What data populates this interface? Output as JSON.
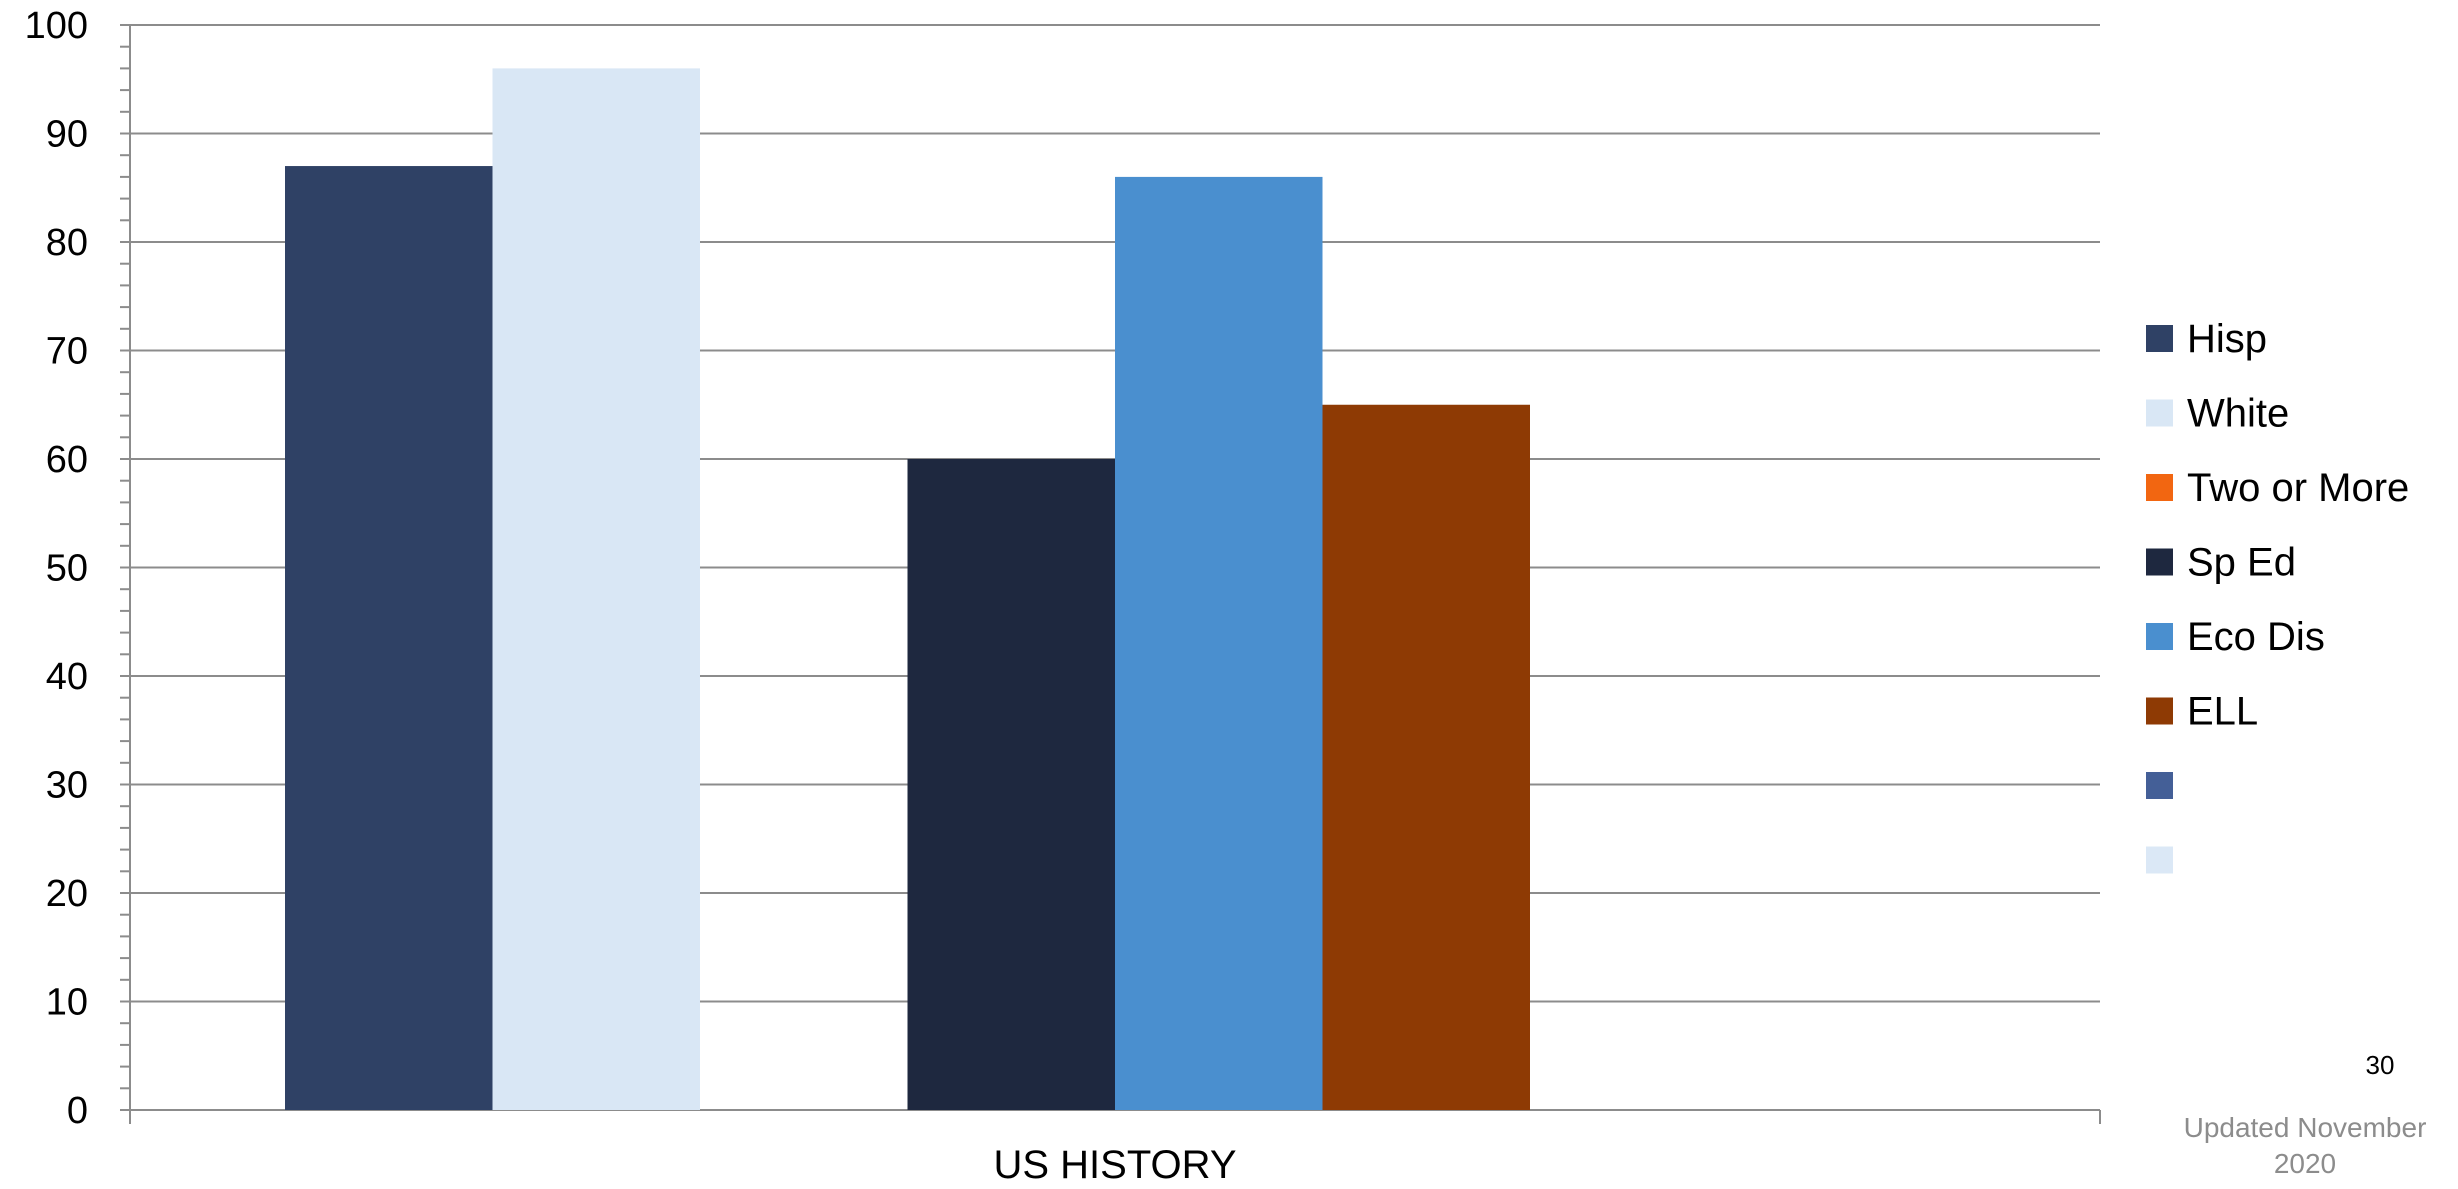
{
  "chart_data": {
    "type": "bar",
    "categories": [
      "US HISTORY"
    ],
    "ylim": [
      0,
      100
    ],
    "yticks": [
      0,
      10,
      20,
      30,
      40,
      50,
      60,
      70,
      80,
      90,
      100
    ],
    "grid": true,
    "legend_position": "right",
    "series": [
      {
        "name": "Hisp",
        "values": [
          87
        ],
        "color": "#2f4165"
      },
      {
        "name": "White",
        "values": [
          96
        ],
        "color": "#d9e7f5"
      },
      {
        "name": "Two or More",
        "values": [
          null
        ],
        "color": "#f26611"
      },
      {
        "name": "Sp Ed",
        "values": [
          60
        ],
        "color": "#1e283f"
      },
      {
        "name": "Eco Dis",
        "values": [
          86
        ],
        "color": "#4a8fcf"
      },
      {
        "name": "ELL",
        "values": [
          65
        ],
        "color": "#8e3a04"
      },
      {
        "name": "",
        "values": [
          null
        ],
        "color": "#445f97"
      },
      {
        "name": "",
        "values": [
          null
        ],
        "color": "#dbe8f6"
      }
    ]
  },
  "footer": {
    "page_number": "30",
    "updated": "Updated November 2020"
  }
}
